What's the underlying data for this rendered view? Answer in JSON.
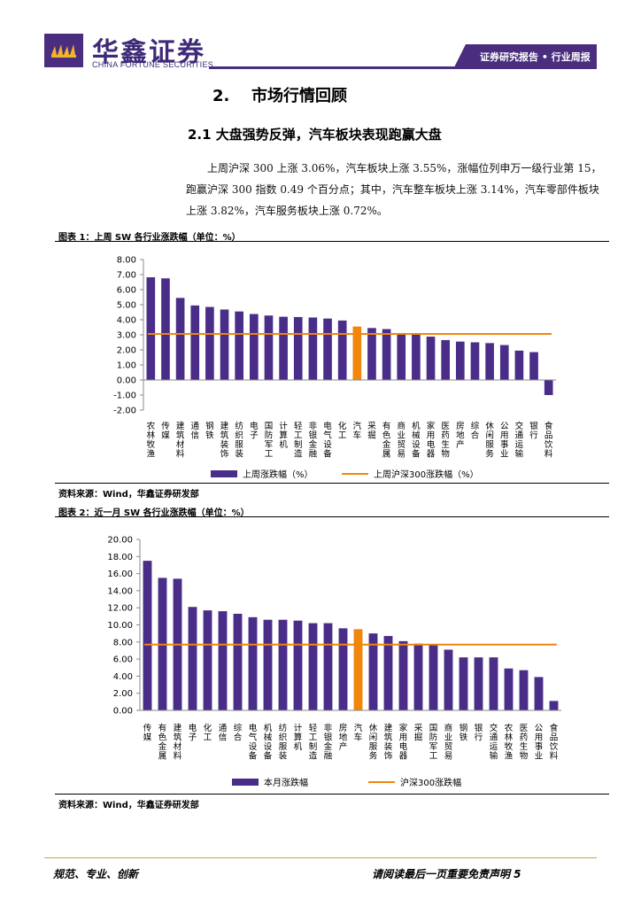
{
  "header": {
    "logo_cn": "华鑫证券",
    "logo_en": "CHINA FORTUNE SECURITIES",
    "badge": "证券研究报告 • 行业周报"
  },
  "section": {
    "num": "2.",
    "title": "市场行情回顾"
  },
  "subsection": {
    "title": "2.1 大盘强势反弹，汽车板块表现跑赢大盘"
  },
  "paragraph": "上周沪深 300 上涨 3.06%，汽车板块上涨 3.55%，涨幅位列申万一级行业第 15，跑赢沪深 300 指数 0.49 个百分点；其中，汽车整车板块上涨 3.14%，汽车零部件板块上涨 3.82%，汽车服务板块上涨 0.72%。",
  "figure1": {
    "title": "图表 1：上周 SW 各行业涨跌幅（单位：%）",
    "source": "资料来源：Wind，华鑫证券研发部"
  },
  "figure2": {
    "title": "图表 2：近一月 SW 各行业涨跌幅（单位：%）",
    "source": "资料来源：Wind，华鑫证券研发部"
  },
  "chart_data": [
    {
      "type": "bar",
      "title": "上周 SW 各行业涨跌幅（单位：%）",
      "categories": [
        "农林牧渔",
        "传媒",
        "建筑材料",
        "通信",
        "钢铁",
        "建筑装饰",
        "纺织服装",
        "电子",
        "国防军工",
        "计算机",
        "轻工制造",
        "非银金融",
        "电气设备",
        "化工",
        "汽车",
        "采掘",
        "有色金属",
        "商业贸易",
        "机械设备",
        "家用电器",
        "医药生物",
        "房地产",
        "综合",
        "休闲服务",
        "公用事业",
        "交通运输",
        "银行",
        "食品饮料"
      ],
      "series": [
        {
          "name": "上周涨跌幅（%）",
          "values": [
            6.82,
            6.75,
            5.45,
            4.95,
            4.85,
            4.68,
            4.55,
            4.38,
            4.28,
            4.2,
            4.18,
            4.15,
            4.08,
            3.95,
            3.55,
            3.45,
            3.38,
            3.1,
            3.05,
            2.88,
            2.65,
            2.55,
            2.5,
            2.45,
            2.32,
            1.95,
            1.85,
            -1.0
          ]
        }
      ],
      "reference": {
        "name": "上周沪深300涨跌幅（%）",
        "value": 3.06
      },
      "highlight": "汽车",
      "ylim": [
        -2,
        8
      ],
      "yticks": [
        "8.00",
        "7.00",
        "6.00",
        "5.00",
        "4.00",
        "3.00",
        "2.00",
        "1.00",
        "0.00",
        "-1.00",
        "-2.00"
      ],
      "colors": {
        "bar": "#4a2d88",
        "highlight": "#f0860b",
        "reference": "#f0860b"
      },
      "legend": "bottom"
    },
    {
      "type": "bar",
      "title": "近一月 SW 各行业涨跌幅（单位：%）",
      "categories": [
        "传媒",
        "有色金属",
        "建筑材料",
        "电子",
        "化工",
        "通信",
        "综合",
        "电气设备",
        "机械设备",
        "纺织服装",
        "计算机",
        "轻工制造",
        "非银金融",
        "房地产",
        "汽车",
        "休闲服务",
        "建筑装饰",
        "家用电器",
        "采掘",
        "国防军工",
        "商业贸易",
        "钢铁",
        "银行",
        "交通运输",
        "农林牧渔",
        "医药生物",
        "公用事业",
        "食品饮料"
      ],
      "series": [
        {
          "name": "本月涨跌幅",
          "values": [
            17.5,
            15.5,
            15.4,
            12.1,
            11.7,
            11.6,
            11.3,
            10.9,
            10.6,
            10.6,
            10.5,
            10.2,
            10.2,
            9.6,
            9.5,
            9.0,
            8.7,
            8.1,
            7.8,
            7.7,
            7.1,
            6.2,
            6.2,
            6.2,
            4.9,
            4.7,
            3.9,
            1.1
          ]
        }
      ],
      "reference": {
        "name": "沪深300涨跌幅",
        "value": 7.7
      },
      "highlight": "汽车",
      "ylim": [
        0,
        20
      ],
      "yticks": [
        "20.00",
        "18.00",
        "16.00",
        "14.00",
        "12.00",
        "10.00",
        "8.00",
        "6.00",
        "4.00",
        "2.00",
        "0.00"
      ],
      "colors": {
        "bar": "#4a2d88",
        "highlight": "#f0860b",
        "reference": "#f0860b"
      },
      "legend": "bottom"
    }
  ],
  "footer": {
    "left": "规范、专业、创新",
    "right": "请阅读最后一页重要免责声明 5"
  }
}
